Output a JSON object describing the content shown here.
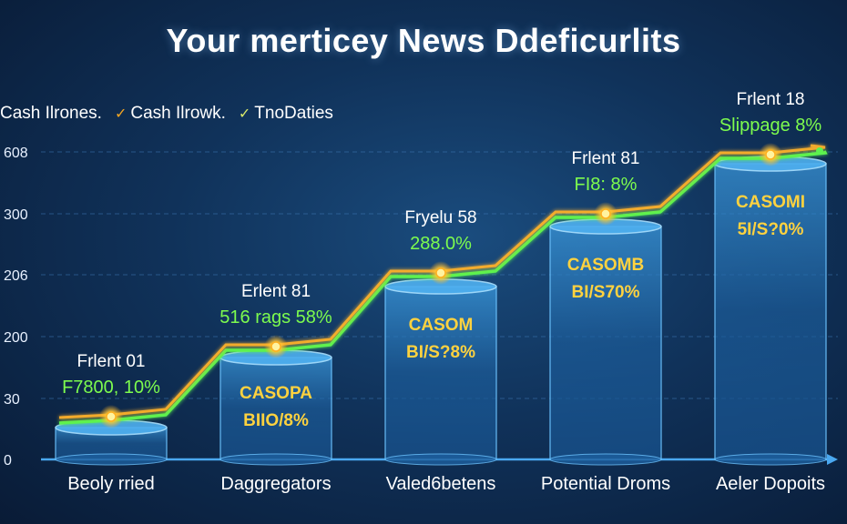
{
  "title": "Your merticey News Ddeficurlits",
  "legend": [
    {
      "name": "Cash Ilrones.",
      "color": "#ffffff"
    },
    {
      "name": "Cash Ilrowk.",
      "color": "#f5a623"
    },
    {
      "name": "TnoDaties",
      "color": "#d8e86a"
    }
  ],
  "colors": {
    "background": "#10325a",
    "bar": "#2a7fc4",
    "line_orange": "#ffb22c",
    "line_green": "#5cf24f",
    "bar_text": "#ffd23f",
    "annotation_top": "#ffffff",
    "annotation_bottom": "#7dfc4e",
    "axis": "#4aa8f0"
  },
  "chart_data": {
    "type": "bar",
    "categories": [
      "Beoly rried",
      "Daggregators",
      "Valed6betens",
      "Potential Droms",
      "Aeler Dopoits"
    ],
    "y_tick_labels": [
      "0",
      "30",
      "200",
      "206",
      "300",
      "608"
    ],
    "values": [
      1,
      2,
      3,
      4,
      5
    ],
    "bar_labels": [
      {
        "line1": "",
        "line2": ""
      },
      {
        "line1": "CASOPA",
        "line2": "BIIO/8%"
      },
      {
        "line1": "CASOM",
        "line2": "BI/S?8%"
      },
      {
        "line1": "CASOMB",
        "line2": "BI/S70%"
      },
      {
        "line1": "CASOMI",
        "line2": "5I/S?0%"
      }
    ],
    "annotations": [
      {
        "top": "Frlent 01",
        "bottom": "F7800, 10%"
      },
      {
        "top": "Erlent 81",
        "bottom": "516 rags 58%"
      },
      {
        "top": "Fryelu 58",
        "bottom": "288.0%"
      },
      {
        "top": "Frlent 81",
        "bottom": "FI8: 8%"
      },
      {
        "top": "Frlent 18",
        "bottom": "Slippage 8%"
      }
    ],
    "series": [
      {
        "values": [
          1,
          2,
          3,
          4,
          5
        ]
      },
      {
        "values": [
          1,
          2,
          3,
          4,
          5
        ]
      }
    ],
    "grid": true
  }
}
